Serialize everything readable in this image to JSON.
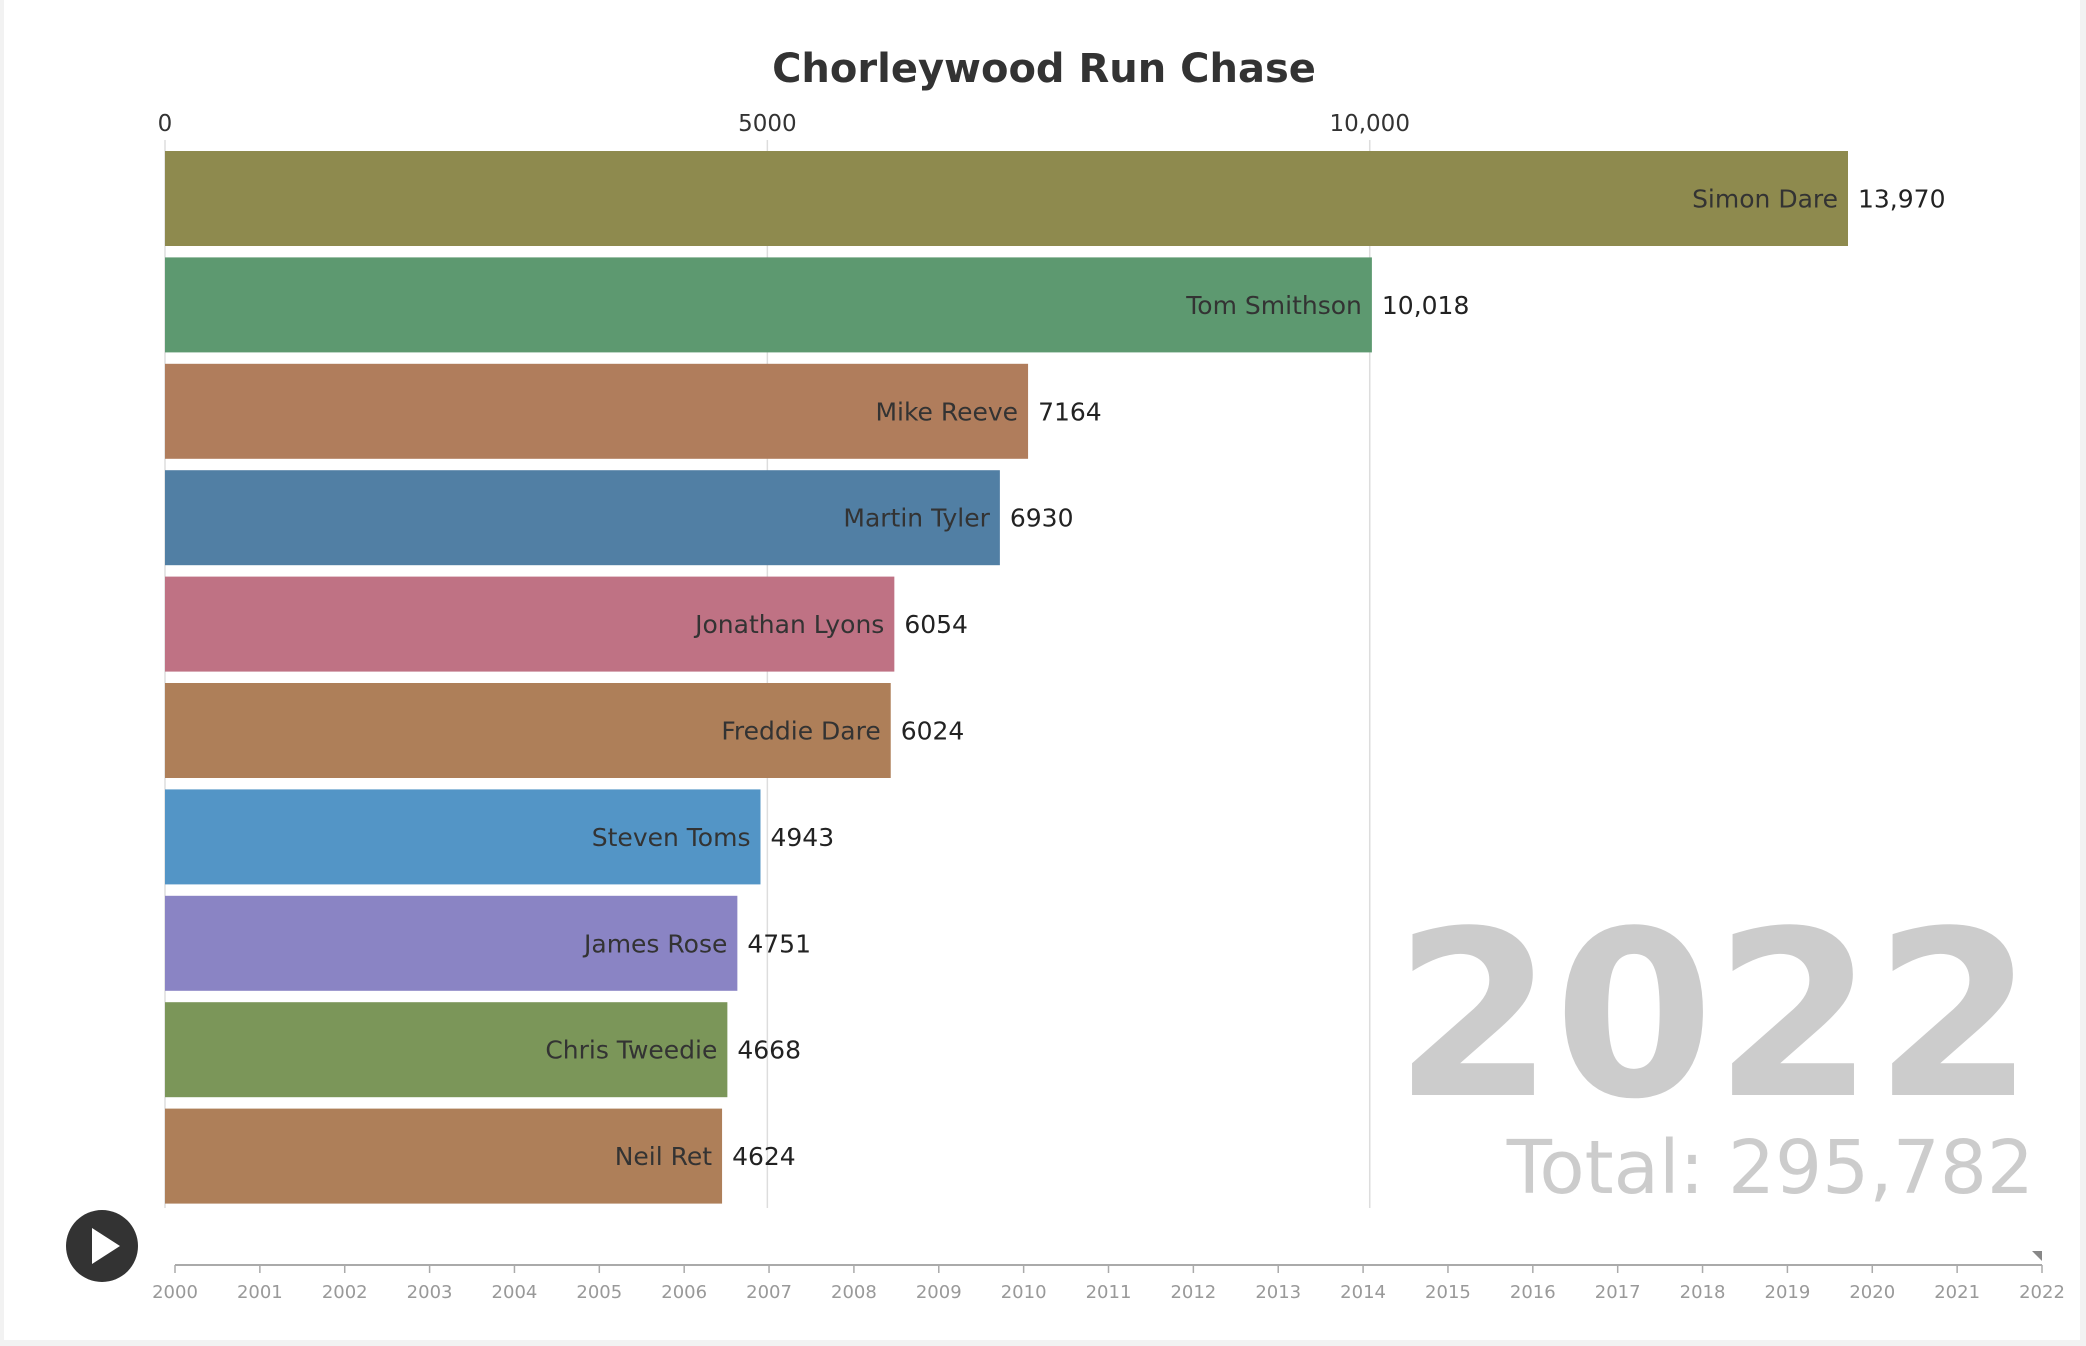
{
  "chart_data": {
    "type": "bar",
    "orientation": "horizontal",
    "title": "Chorleywood Run Chase",
    "xlim": [
      0,
      13970
    ],
    "x_ticks": [
      {
        "value": 0,
        "label": "0"
      },
      {
        "value": 5000,
        "label": "5000"
      },
      {
        "value": 10000,
        "label": "10,000"
      }
    ],
    "grid": true,
    "categories": [
      "Simon Dare",
      "Tom Smithson",
      "Mike Reeve",
      "Martin Tyler",
      "Jonathan Lyons",
      "Freddie Dare",
      "Steven Toms",
      "James Rose",
      "Chris Tweedie",
      "Neil Ret"
    ],
    "values": [
      13970,
      10018,
      7164,
      6930,
      6054,
      6024,
      4943,
      4751,
      4668,
      4624
    ],
    "value_labels": [
      "13,970",
      "10,018",
      "7164",
      "6930",
      "6054",
      "6024",
      "4943",
      "4751",
      "4668",
      "4624"
    ],
    "colors": [
      "#8e8a4e",
      "#5d9970",
      "#b07d5c",
      "#517fa4",
      "#bf7284",
      "#ae7f59",
      "#5395c6",
      "#8a84c4",
      "#7b9659",
      "#ae7f59"
    ],
    "current_year": "2022",
    "total_label": "Total: 295,782"
  },
  "timeline": {
    "years": [
      "2000",
      "2001",
      "2002",
      "2003",
      "2004",
      "2005",
      "2006",
      "2007",
      "2008",
      "2009",
      "2010",
      "2011",
      "2012",
      "2013",
      "2014",
      "2015",
      "2016",
      "2017",
      "2018",
      "2019",
      "2020",
      "2021",
      "2022"
    ],
    "current": "2022"
  },
  "controls": {
    "play_icon": "play-icon"
  }
}
